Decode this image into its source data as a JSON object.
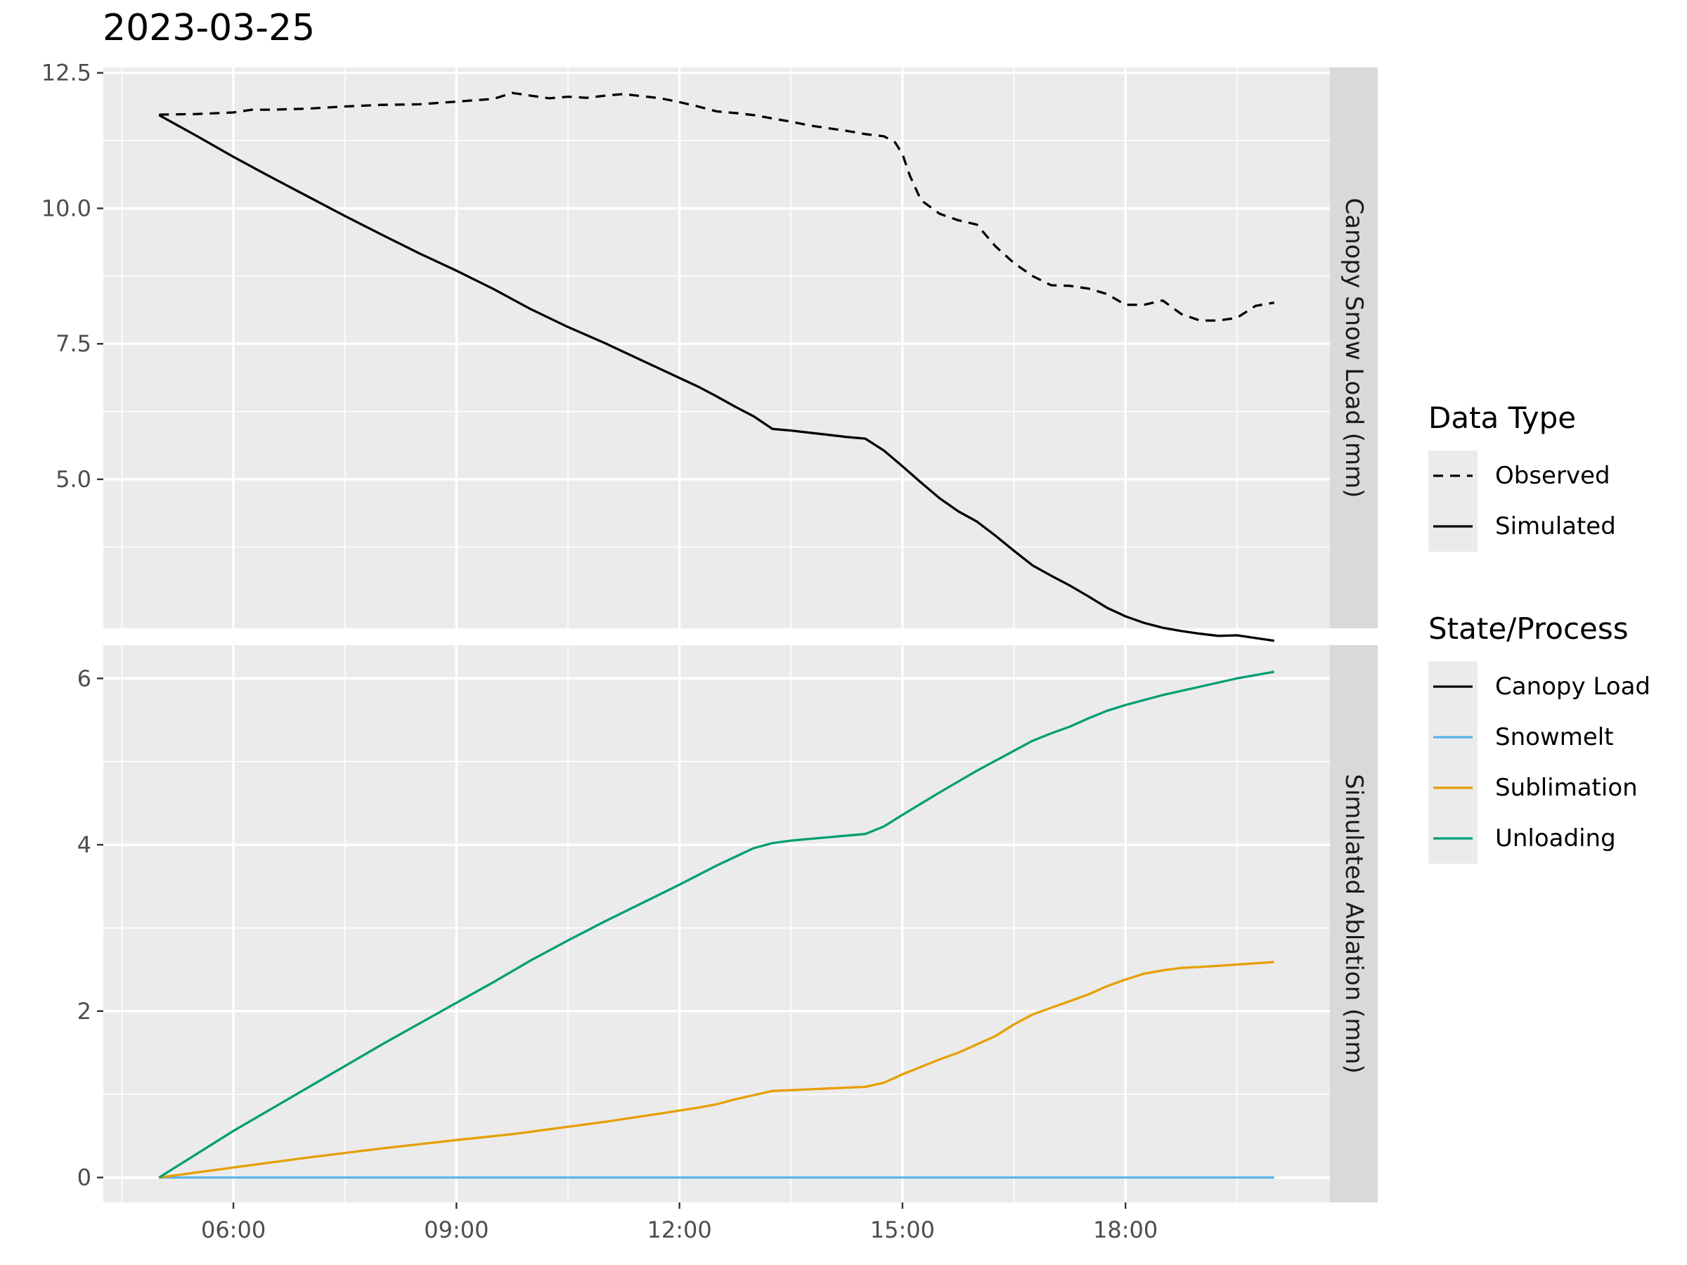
{
  "title": "2023-03-25",
  "legends": [
    {
      "title": "Data Type",
      "entries": [
        {
          "label": "Observed",
          "color": "#000000",
          "dash": "dashed"
        },
        {
          "label": "Simulated",
          "color": "#000000",
          "dash": "solid"
        }
      ]
    },
    {
      "title": "State/Process",
      "entries": [
        {
          "label": "Canopy Load",
          "color": "#000000",
          "dash": "solid"
        },
        {
          "label": "Snowmelt",
          "color": "#56B4E9",
          "dash": "solid"
        },
        {
          "label": "Sublimation",
          "color": "#E69F00",
          "dash": "solid"
        },
        {
          "label": "Unloading",
          "color": "#009E73",
          "dash": "solid"
        }
      ]
    }
  ],
  "colors": {
    "panel_bg": "#EBEBEB",
    "strip_bg": "#D9D9D9",
    "grid": "#FFFFFF",
    "tick_text": "#4D4D4D"
  },
  "chart_data": [
    {
      "type": "line",
      "facet_label": "Canopy Snow Load (mm)",
      "x_unit": "hours",
      "xlim": [
        4.25,
        20.75
      ],
      "ylim": [
        2.25,
        12.6
      ],
      "x_ticks": [
        {
          "v": 6,
          "label": "06:00"
        },
        {
          "v": 9,
          "label": "09:00"
        },
        {
          "v": 12,
          "label": "12:00"
        },
        {
          "v": 15,
          "label": "15:00"
        },
        {
          "v": 18,
          "label": "18:00"
        }
      ],
      "y_ticks": [
        {
          "v": 5,
          "label": "5.0"
        },
        {
          "v": 7.5,
          "label": "7.5"
        },
        {
          "v": 10,
          "label": "10.0"
        },
        {
          "v": 12.5,
          "label": "12.5"
        }
      ],
      "y_minor": [
        3.75,
        6.25,
        8.75,
        11.25
      ],
      "series": [
        {
          "name": "Observed",
          "state": "Canopy Load",
          "color": "#000000",
          "dash": "dashed",
          "x": [
            5.0,
            5.5,
            6.0,
            6.25,
            6.5,
            7.0,
            7.5,
            8.0,
            8.5,
            9.0,
            9.5,
            9.75,
            10.0,
            10.25,
            10.5,
            10.75,
            11.0,
            11.25,
            11.5,
            11.75,
            12.0,
            12.25,
            12.5,
            12.75,
            13.0,
            13.25,
            13.5,
            13.75,
            14.0,
            14.25,
            14.5,
            14.75,
            14.9,
            15.0,
            15.1,
            15.25,
            15.5,
            15.75,
            16.0,
            16.25,
            16.5,
            16.75,
            17.0,
            17.25,
            17.5,
            17.75,
            18.0,
            18.25,
            18.5,
            18.75,
            19.0,
            19.25,
            19.5,
            19.75,
            20.0
          ],
          "y": [
            11.73,
            11.74,
            11.77,
            11.82,
            11.82,
            11.84,
            11.88,
            11.91,
            11.92,
            11.97,
            12.02,
            12.13,
            12.08,
            12.03,
            12.06,
            12.04,
            12.08,
            12.11,
            12.07,
            12.03,
            11.96,
            11.88,
            11.79,
            11.76,
            11.72,
            11.66,
            11.6,
            11.53,
            11.48,
            11.43,
            11.37,
            11.33,
            11.22,
            11.0,
            10.6,
            10.15,
            9.9,
            9.78,
            9.7,
            9.3,
            8.99,
            8.75,
            8.58,
            8.57,
            8.52,
            8.42,
            8.22,
            8.22,
            8.3,
            8.05,
            7.93,
            7.93,
            7.98,
            8.2,
            8.26
          ]
        },
        {
          "name": "Simulated",
          "state": "Canopy Load",
          "color": "#000000",
          "dash": "solid",
          "x": [
            5.0,
            5.5,
            6.0,
            6.5,
            7.0,
            7.5,
            8.0,
            8.5,
            9.0,
            9.5,
            10.0,
            10.5,
            11.0,
            11.5,
            12.0,
            12.25,
            12.5,
            12.75,
            13.0,
            13.25,
            13.5,
            13.75,
            14.0,
            14.25,
            14.5,
            14.75,
            15.0,
            15.25,
            15.5,
            15.75,
            16.0,
            16.25,
            16.5,
            16.75,
            17.0,
            17.25,
            17.5,
            17.75,
            18.0,
            18.25,
            18.5,
            18.75,
            19.0,
            19.25,
            19.5,
            19.75,
            20.0
          ],
          "y": [
            11.72,
            11.34,
            10.95,
            10.58,
            10.22,
            9.86,
            9.51,
            9.17,
            8.85,
            8.51,
            8.14,
            7.81,
            7.51,
            7.19,
            6.87,
            6.71,
            6.53,
            6.34,
            6.16,
            5.93,
            5.9,
            5.86,
            5.82,
            5.78,
            5.75,
            5.53,
            5.24,
            4.94,
            4.65,
            4.41,
            4.22,
            3.96,
            3.68,
            3.41,
            3.22,
            3.04,
            2.84,
            2.63,
            2.47,
            2.35,
            2.26,
            2.2,
            2.15,
            2.11,
            2.12,
            2.07,
            2.02
          ]
        }
      ]
    },
    {
      "type": "line",
      "facet_label": "Simulated Ablation (mm)",
      "x_unit": "hours",
      "xlim": [
        4.25,
        20.75
      ],
      "ylim": [
        -0.3,
        6.4
      ],
      "x_ticks": [
        {
          "v": 6,
          "label": "06:00"
        },
        {
          "v": 9,
          "label": "09:00"
        },
        {
          "v": 12,
          "label": "12:00"
        },
        {
          "v": 15,
          "label": "15:00"
        },
        {
          "v": 18,
          "label": "18:00"
        }
      ],
      "y_ticks": [
        {
          "v": 0,
          "label": "0"
        },
        {
          "v": 2,
          "label": "2"
        },
        {
          "v": 4,
          "label": "4"
        },
        {
          "v": 6,
          "label": "6"
        }
      ],
      "y_minor": [
        1,
        3,
        5
      ],
      "series": [
        {
          "name": "Snowmelt",
          "state": "Snowmelt",
          "color": "#56B4E9",
          "dash": "solid",
          "x": [
            5.0,
            20.0
          ],
          "y": [
            0,
            0
          ]
        },
        {
          "name": "Sublimation",
          "state": "Sublimation",
          "color": "#E69F00",
          "dash": "solid",
          "x": [
            5.0,
            6.0,
            7.0,
            8.0,
            9.0,
            9.75,
            10.0,
            11.0,
            11.75,
            12.25,
            12.5,
            12.75,
            13.0,
            13.25,
            14.0,
            14.5,
            14.75,
            15.0,
            15.5,
            15.75,
            16.0,
            16.25,
            16.5,
            16.75,
            17.0,
            17.25,
            17.5,
            17.75,
            18.0,
            18.25,
            18.5,
            18.75,
            19.0,
            19.5,
            20.0
          ],
          "y": [
            0.0,
            0.12,
            0.24,
            0.35,
            0.45,
            0.52,
            0.55,
            0.67,
            0.77,
            0.84,
            0.88,
            0.94,
            0.99,
            1.04,
            1.07,
            1.09,
            1.14,
            1.24,
            1.42,
            1.5,
            1.6,
            1.7,
            1.84,
            1.96,
            2.04,
            2.12,
            2.2,
            2.3,
            2.38,
            2.45,
            2.49,
            2.52,
            2.53,
            2.56,
            2.59
          ]
        },
        {
          "name": "Unloading",
          "state": "Unloading",
          "color": "#009E73",
          "dash": "solid",
          "x": [
            5.0,
            6.0,
            7.0,
            8.0,
            9.0,
            9.5,
            10.0,
            10.5,
            11.0,
            11.5,
            12.0,
            12.5,
            13.0,
            13.25,
            13.5,
            14.0,
            14.5,
            14.75,
            15.0,
            15.5,
            16.0,
            16.5,
            16.75,
            17.0,
            17.25,
            17.5,
            17.75,
            18.0,
            18.5,
            19.0,
            19.5,
            20.0
          ],
          "y": [
            0.0,
            0.56,
            1.08,
            1.6,
            2.1,
            2.35,
            2.61,
            2.85,
            3.08,
            3.3,
            3.52,
            3.75,
            3.96,
            4.02,
            4.05,
            4.09,
            4.13,
            4.22,
            4.36,
            4.63,
            4.89,
            5.13,
            5.25,
            5.34,
            5.42,
            5.52,
            5.61,
            5.68,
            5.8,
            5.9,
            6.0,
            6.08
          ]
        }
      ]
    }
  ]
}
